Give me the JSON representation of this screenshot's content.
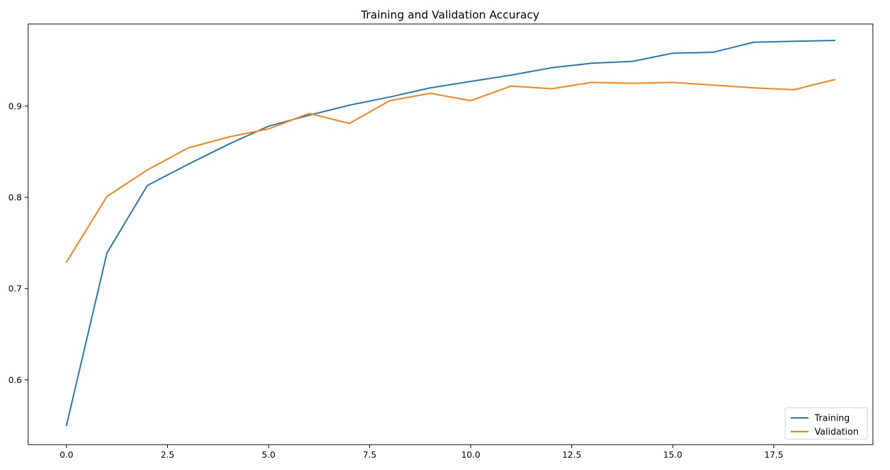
{
  "chart_data": {
    "type": "line",
    "title": "Training and Validation Accuracy",
    "xlabel": "",
    "ylabel": "",
    "xlim": [
      -0.95,
      19.95
    ],
    "ylim": [
      0.529,
      0.99
    ],
    "grid": false,
    "legend_position": "lower-right",
    "x_ticks": [
      0.0,
      2.5,
      5.0,
      7.5,
      10.0,
      12.5,
      15.0,
      17.5
    ],
    "x_tick_labels": [
      "0.0",
      "2.5",
      "5.0",
      "7.5",
      "10.0",
      "12.5",
      "15.0",
      "17.5"
    ],
    "y_ticks": [
      0.6,
      0.7,
      0.8,
      0.9
    ],
    "y_tick_labels": [
      "0.6",
      "0.7",
      "0.8",
      "0.9"
    ],
    "x": [
      0,
      1,
      2,
      3,
      4,
      5,
      6,
      7,
      8,
      9,
      10,
      11,
      12,
      13,
      14,
      15,
      16,
      17,
      18,
      19
    ],
    "series": [
      {
        "name": "Training",
        "color": "#1f77b4",
        "values": [
          0.55,
          0.739,
          0.813,
          0.836,
          0.858,
          0.878,
          0.89,
          0.901,
          0.91,
          0.92,
          0.927,
          0.934,
          0.942,
          0.947,
          0.949,
          0.958,
          0.959,
          0.97,
          0.971,
          0.972
        ]
      },
      {
        "name": "Validation",
        "color": "#ff7f0e",
        "values": [
          0.729,
          0.801,
          0.83,
          0.854,
          0.866,
          0.875,
          0.892,
          0.881,
          0.906,
          0.914,
          0.906,
          0.922,
          0.919,
          0.926,
          0.925,
          0.926,
          0.923,
          0.92,
          0.918,
          0.929
        ]
      }
    ]
  }
}
